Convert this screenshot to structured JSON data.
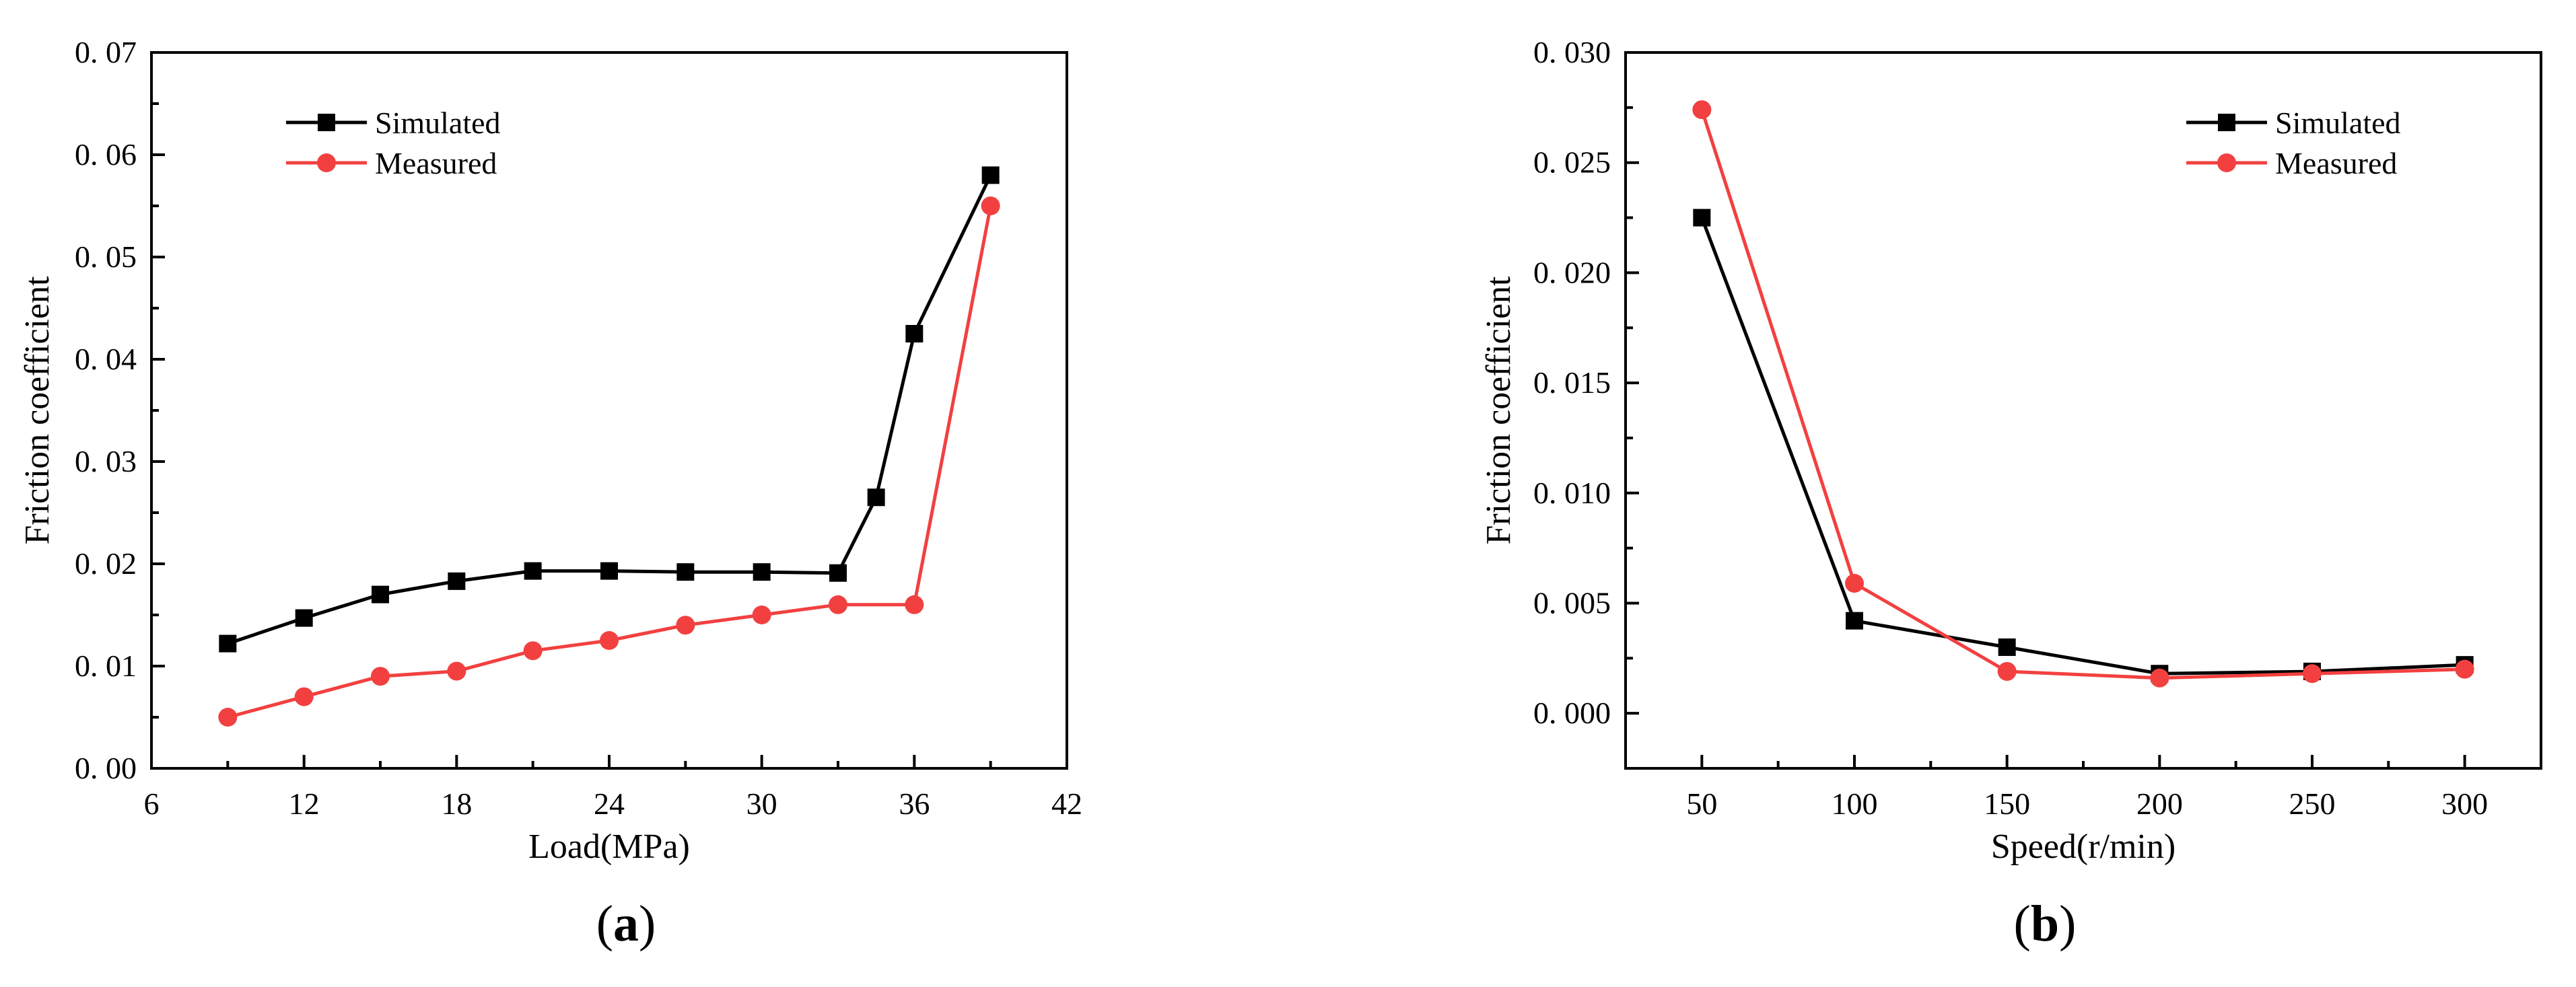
{
  "chart_data": [
    {
      "panel": "(a)",
      "panel_letter": "a",
      "type": "line",
      "xlabel": "Load(MPa)",
      "ylabel": "Friction coefficient",
      "xlim": [
        6,
        42
      ],
      "ylim": [
        0,
        0.07
      ],
      "xticks": [
        6,
        12,
        18,
        24,
        30,
        36,
        42
      ],
      "yticks": [
        0,
        0.01,
        0.02,
        0.03,
        0.04,
        0.05,
        0.06,
        0.07
      ],
      "xtick_labels": [
        "6",
        "12",
        "18",
        "24",
        "30",
        "36",
        "42"
      ],
      "ytick_labels": [
        "0. 00",
        "0. 01",
        "0. 02",
        "0. 03",
        "0. 04",
        "0. 05",
        "0. 06",
        "0. 07"
      ],
      "grid": false,
      "legend_position": "top-left",
      "series": [
        {
          "name": "Simulated",
          "color": "#000000",
          "marker": "square",
          "x": [
            9,
            12,
            15,
            18,
            21,
            24,
            27,
            30,
            33,
            34.5,
            36,
            39
          ],
          "y": [
            0.0122,
            0.0147,
            0.017,
            0.0183,
            0.0193,
            0.0193,
            0.0192,
            0.0192,
            0.0191,
            0.0265,
            0.0425,
            0.058
          ]
        },
        {
          "name": "Measured",
          "color": "#f24040",
          "marker": "circle",
          "x": [
            9,
            12,
            15,
            18,
            21,
            24,
            27,
            30,
            33,
            36,
            39
          ],
          "y": [
            0.005,
            0.007,
            0.009,
            0.0095,
            0.0115,
            0.0125,
            0.014,
            0.015,
            0.016,
            0.016,
            0.055
          ]
        }
      ]
    },
    {
      "panel": "(b)",
      "panel_letter": "b",
      "type": "line",
      "xlabel": "Speed(r/min)",
      "ylabel": "Friction coefficient",
      "xlim": [
        25,
        325
      ],
      "ylim": [
        -0.0025,
        0.03
      ],
      "xticks": [
        50,
        100,
        150,
        200,
        250,
        300
      ],
      "yticks": [
        0,
        0.005,
        0.01,
        0.015,
        0.02,
        0.025,
        0.03
      ],
      "xtick_labels": [
        "50",
        "100",
        "150",
        "200",
        "250",
        "300"
      ],
      "ytick_labels": [
        "0. 000",
        "0. 005",
        "0. 010",
        "0. 015",
        "0. 020",
        "0. 025",
        "0. 030"
      ],
      "grid": false,
      "legend_position": "top-right",
      "series": [
        {
          "name": "Simulated",
          "color": "#000000",
          "marker": "square",
          "x": [
            50,
            100,
            150,
            200,
            250,
            300
          ],
          "y": [
            0.0225,
            0.0042,
            0.003,
            0.0018,
            0.0019,
            0.0022
          ]
        },
        {
          "name": "Measured",
          "color": "#f24040",
          "marker": "circle",
          "x": [
            50,
            100,
            150,
            200,
            250,
            300
          ],
          "y": [
            0.0274,
            0.0059,
            0.0019,
            0.0016,
            0.0018,
            0.002
          ]
        }
      ]
    }
  ]
}
